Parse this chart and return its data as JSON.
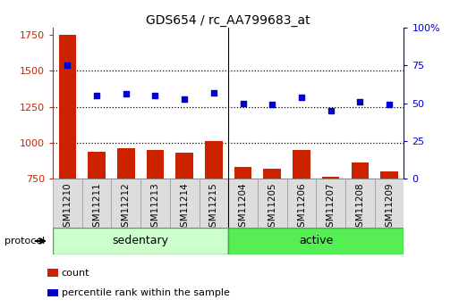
{
  "title": "GDS654 / rc_AA799683_at",
  "samples": [
    "GSM11210",
    "GSM11211",
    "GSM11212",
    "GSM11213",
    "GSM11214",
    "GSM11215",
    "GSM11204",
    "GSM11205",
    "GSM11206",
    "GSM11207",
    "GSM11208",
    "GSM11209"
  ],
  "count_values": [
    1750,
    940,
    960,
    950,
    930,
    1010,
    830,
    820,
    950,
    760,
    865,
    800
  ],
  "percentile_values": [
    75,
    55,
    56,
    55,
    53,
    57,
    50,
    49,
    54,
    45,
    51,
    49
  ],
  "groups": [
    {
      "label": "sedentary",
      "start": 0,
      "end": 6,
      "color": "#ccffcc"
    },
    {
      "label": "active",
      "start": 6,
      "end": 12,
      "color": "#55ee55"
    }
  ],
  "protocol_label": "protocol",
  "bar_color": "#cc2200",
  "dot_color": "#0000cc",
  "ylim_left": [
    750,
    1800
  ],
  "ylim_right": [
    0,
    100
  ],
  "yticks_left": [
    750,
    1000,
    1250,
    1500,
    1750
  ],
  "yticks_right": [
    0,
    25,
    50,
    75,
    100
  ],
  "ytick_labels_right": [
    "0",
    "25",
    "50",
    "75",
    "100%"
  ],
  "grid_values": [
    1000,
    1250,
    1500
  ],
  "background_color": "#ffffff",
  "tick_bg_color": "#dddddd",
  "legend_count_label": "count",
  "legend_percentile_label": "percentile rank within the sample",
  "figsize": [
    5.13,
    3.45
  ],
  "dpi": 100,
  "n_samples": 12
}
